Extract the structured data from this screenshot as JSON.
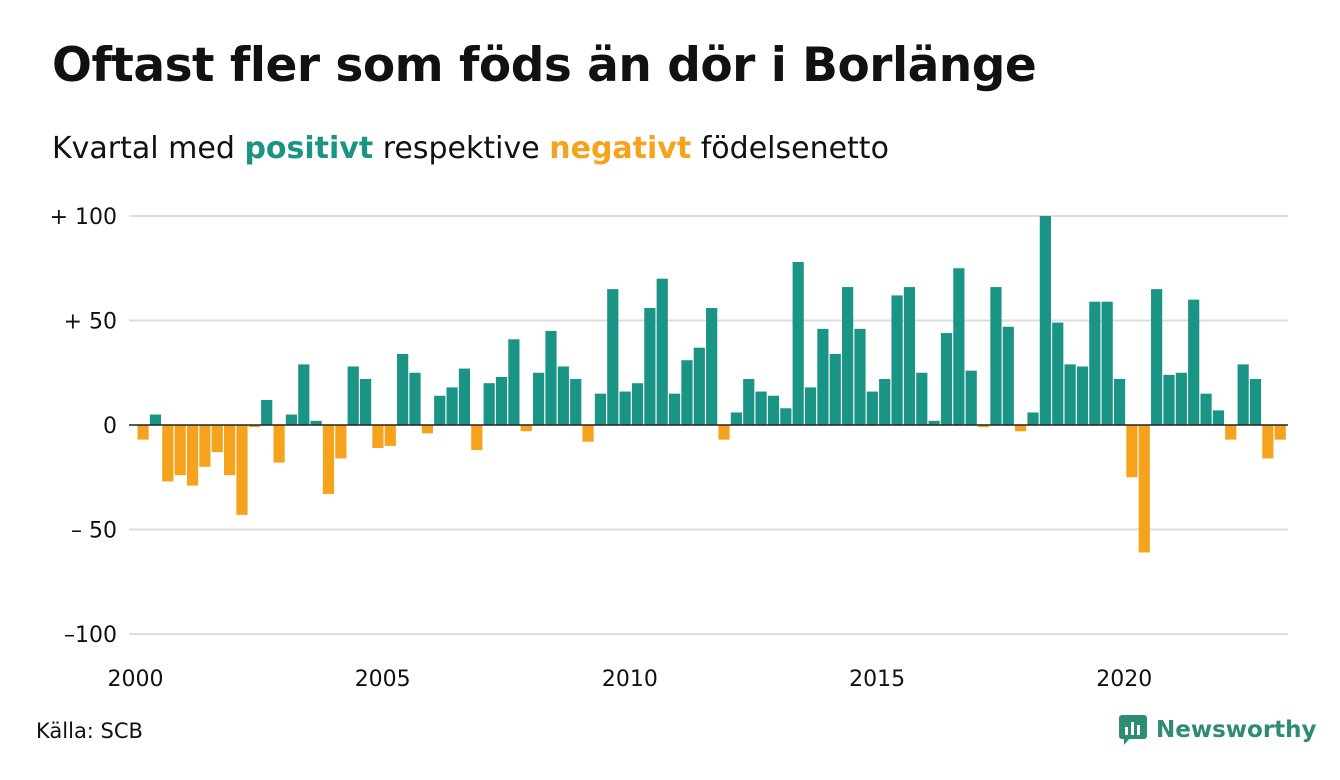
{
  "title": "Oftast fler som föds än dör i Borlänge",
  "subtitle": {
    "prefix": "Kvartal med",
    "positive": "positivt",
    "middle": "respektive",
    "negative": "negativt",
    "suffix": "födelsenetto"
  },
  "colors": {
    "positive": "#1a9485",
    "negative": "#f5a21d",
    "grid": "#dddddd",
    "text": "#111111",
    "brand": "#2e8b74"
  },
  "source": "Källa: SCB",
  "brand": {
    "name": "Newsworthy",
    "icon": "newsworthy-logo-icon"
  },
  "chart_data": {
    "type": "bar",
    "title": "Oftast fler som föds än dör i Borlänge",
    "xlabel": "",
    "ylabel": "",
    "ylim": [
      -100,
      100
    ],
    "yticks": [
      {
        "value": 100,
        "label": "+ 100"
      },
      {
        "value": 50,
        "label": "+  50"
      },
      {
        "value": 0,
        "label": "0"
      },
      {
        "value": -50,
        "label": "– 50"
      },
      {
        "value": -100,
        "label": "–100"
      }
    ],
    "xticks": [
      "2000",
      "2005",
      "2010",
      "2015",
      "2020"
    ],
    "x_start": "2000 Q1",
    "grid": true,
    "legend": "none",
    "values": [
      -7,
      5,
      -27,
      -24,
      -29,
      -20,
      -13,
      -24,
      -43,
      -1,
      12,
      -18,
      5,
      29,
      2,
      -33,
      -16,
      28,
      22,
      -11,
      -10,
      34,
      25,
      -4,
      14,
      18,
      27,
      -12,
      20,
      23,
      41,
      -3,
      25,
      45,
      28,
      22,
      -8,
      15,
      65,
      16,
      20,
      56,
      70,
      15,
      31,
      37,
      56,
      -7,
      6,
      22,
      16,
      14,
      8,
      78,
      18,
      46,
      34,
      66,
      46,
      16,
      22,
      62,
      66,
      25,
      2,
      44,
      75,
      26,
      -1,
      66,
      47,
      -3,
      6,
      100,
      49,
      29,
      28,
      59,
      59,
      22,
      -25,
      -61,
      65,
      24,
      25,
      60,
      15,
      7,
      -7,
      29,
      22,
      -16,
      -7
    ]
  }
}
